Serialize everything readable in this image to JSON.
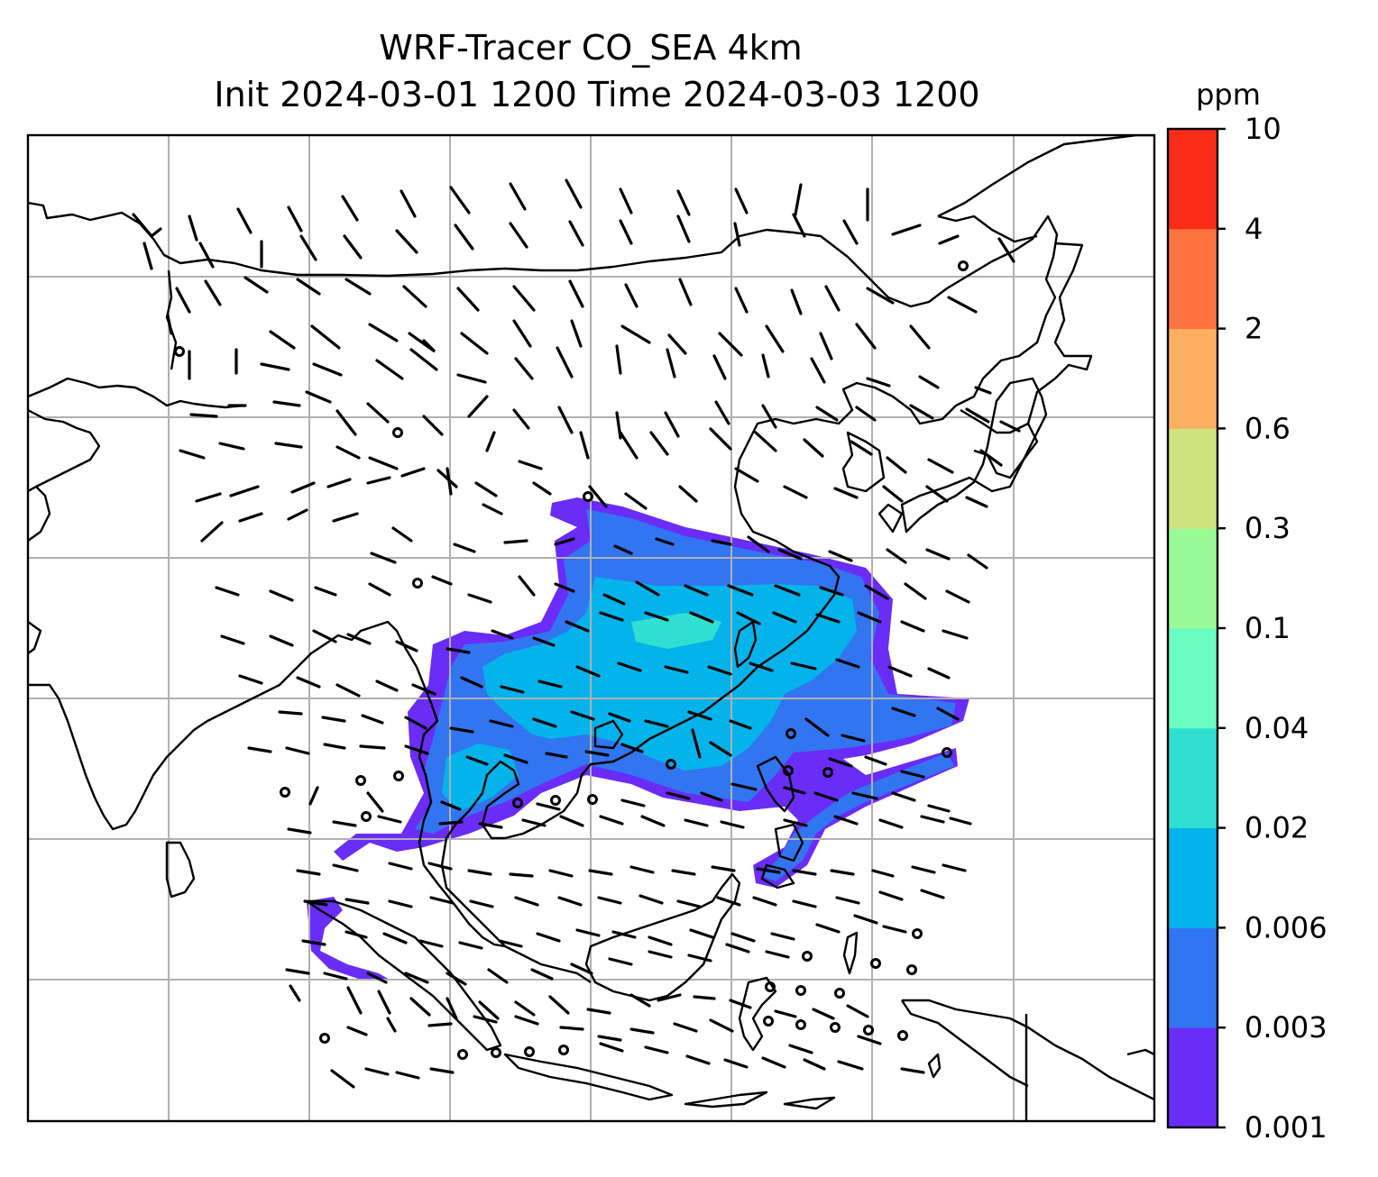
{
  "title": {
    "line1": "WRF-Tracer CO_SEA 4km",
    "line2": "Init 2024-03-01 1200 Time 2024-03-03 1200"
  },
  "colorbar": {
    "unit": "ppm",
    "ticks": [
      "0.001",
      "0.003",
      "0.006",
      "0.02",
      "0.04",
      "0.1",
      "0.3",
      "0.6",
      "2",
      "4",
      "10"
    ],
    "colors": [
      "#6a2cf7",
      "#3275f0",
      "#04b3ea",
      "#31dfd1",
      "#6afcc0",
      "#9bfa98",
      "#d0e37f",
      "#fdb062",
      "#fe7440",
      "#f92c17"
    ]
  },
  "map": {
    "gridlines": true,
    "land_outline_color": "#000000",
    "grid_color": "#b0b0b0",
    "features": [
      "coastlines",
      "country-borders",
      "wind-barbs",
      "co-tracer-plume"
    ]
  }
}
